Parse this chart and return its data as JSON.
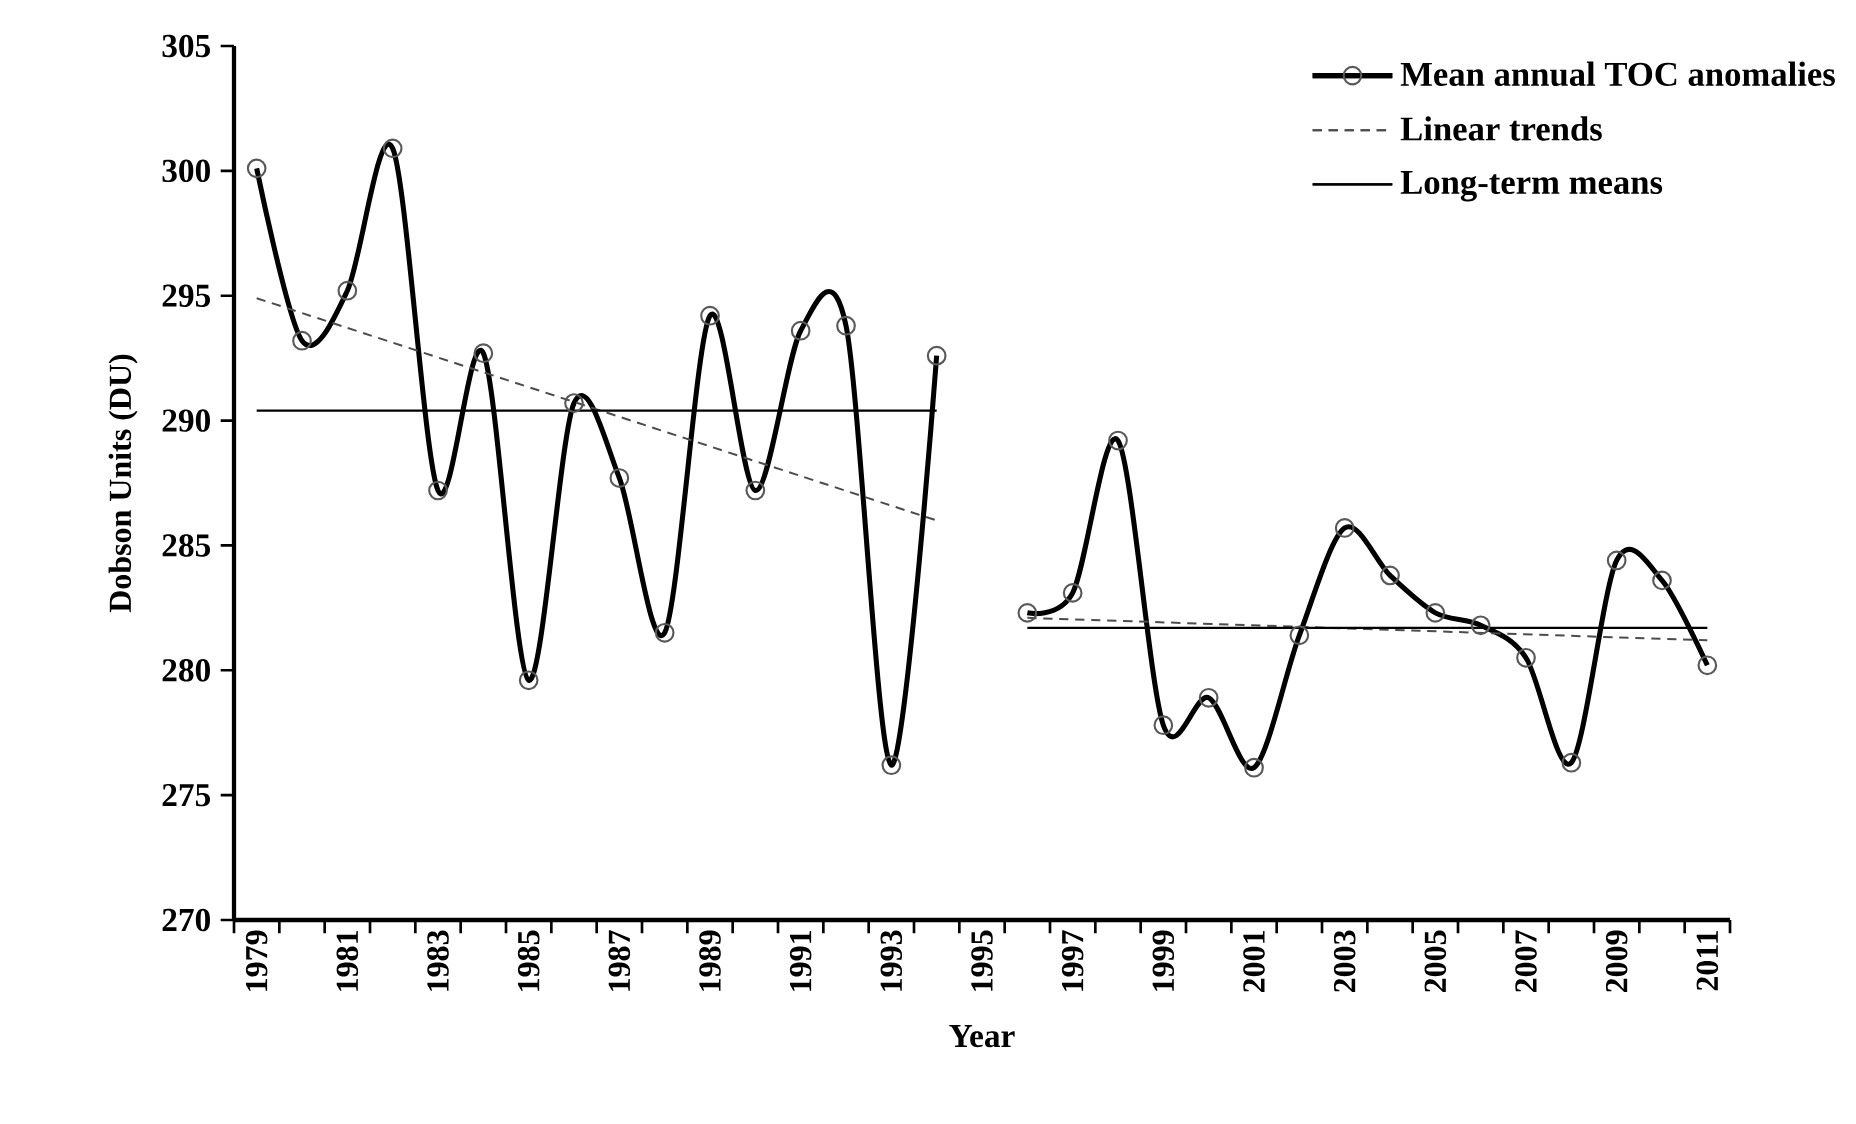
{
  "chart_data": {
    "type": "line",
    "xlabel": "Year",
    "ylabel": "Dobson Units (DU)",
    "x": [
      1979,
      1980,
      1981,
      1982,
      1983,
      1984,
      1985,
      1986,
      1987,
      1988,
      1989,
      1990,
      1991,
      1992,
      1993,
      1994,
      1995,
      1996,
      1997,
      1998,
      1999,
      2000,
      2001,
      2002,
      2003,
      2004,
      2005,
      2006,
      2007,
      2008,
      2009,
      2010,
      2011
    ],
    "series": [
      {
        "name": "Mean annual TOC anomalies",
        "color": "#000000",
        "marker": "circle",
        "line_style": "solid",
        "values": [
          300.1,
          293.2,
          295.2,
          300.9,
          287.2,
          292.7,
          279.6,
          290.7,
          287.7,
          281.5,
          294.2,
          287.2,
          293.6,
          293.8,
          276.2,
          292.6,
          null,
          282.3,
          283.1,
          289.2,
          277.8,
          278.9,
          276.1,
          281.4,
          285.7,
          283.8,
          282.3,
          281.8,
          280.5,
          276.3,
          284.4,
          283.6,
          280.2
        ]
      },
      {
        "name": "Linear trends",
        "type": "line",
        "color": "#4c4c4c",
        "line_style": "dashed",
        "x": [
          1979,
          1994,
          1995,
          1996,
          2011
        ],
        "values": [
          294.9,
          286.0,
          null,
          282.1,
          281.2
        ]
      },
      {
        "name": "Long-term means",
        "type": "line",
        "color": "#000000",
        "line_style": "solid",
        "x": [
          1979,
          1994,
          1995,
          1996,
          2011
        ],
        "values": [
          290.4,
          290.4,
          null,
          281.7,
          281.7
        ]
      }
    ],
    "xlim": [
      1978.5,
      2011.5
    ],
    "xticks": [
      1979,
      1981,
      1983,
      1985,
      1987,
      1989,
      1991,
      1993,
      1995,
      1997,
      1999,
      2001,
      2003,
      2005,
      2007,
      2009,
      2011,
      {
        "value": 1978.5,
        "label": null
      },
      {
        "value": 1979.5,
        "label": null
      },
      {
        "value": 1980.5,
        "label": null
      },
      {
        "value": 1981.5,
        "label": null
      },
      {
        "value": 1982.5,
        "label": null
      },
      {
        "value": 1983.5,
        "label": null
      },
      {
        "value": 1984.5,
        "label": null
      },
      {
        "value": 1985.5,
        "label": null
      },
      {
        "value": 1986.5,
        "label": null
      },
      {
        "value": 1987.5,
        "label": null
      },
      {
        "value": 1988.5,
        "label": null
      },
      {
        "value": 1989.5,
        "label": null
      },
      {
        "value": 1990.5,
        "label": null
      },
      {
        "value": 1991.5,
        "label": null
      },
      {
        "value": 1992.5,
        "label": null
      },
      {
        "value": 1993.5,
        "label": null
      },
      {
        "value": 1994.5,
        "label": null
      },
      {
        "value": 1995.5,
        "label": null
      },
      {
        "value": 1996.5,
        "label": null
      },
      {
        "value": 1997.5,
        "label": null
      },
      {
        "value": 1998.5,
        "label": null
      },
      {
        "value": 1999.5,
        "label": null
      },
      {
        "value": 2000.5,
        "label": null
      },
      {
        "value": 2001.5,
        "label": null
      },
      {
        "value": 2002.5,
        "label": null
      },
      {
        "value": 2003.5,
        "label": null
      },
      {
        "value": 2004.5,
        "label": null
      },
      {
        "value": 2005.5,
        "label": null
      },
      {
        "value": 2006.5,
        "label": null
      },
      {
        "value": 2007.5,
        "label": null
      },
      {
        "value": 2008.5,
        "label": null
      },
      {
        "value": 2009.5,
        "label": null
      },
      {
        "value": 2010.5,
        "label": null
      },
      {
        "value": 2011.5,
        "label": null
      }
    ],
    "ylim": [
      270,
      305
    ],
    "yticks": [
      270,
      275,
      280,
      285,
      290,
      295,
      300,
      305
    ],
    "grid": false,
    "legend": "top right"
  }
}
